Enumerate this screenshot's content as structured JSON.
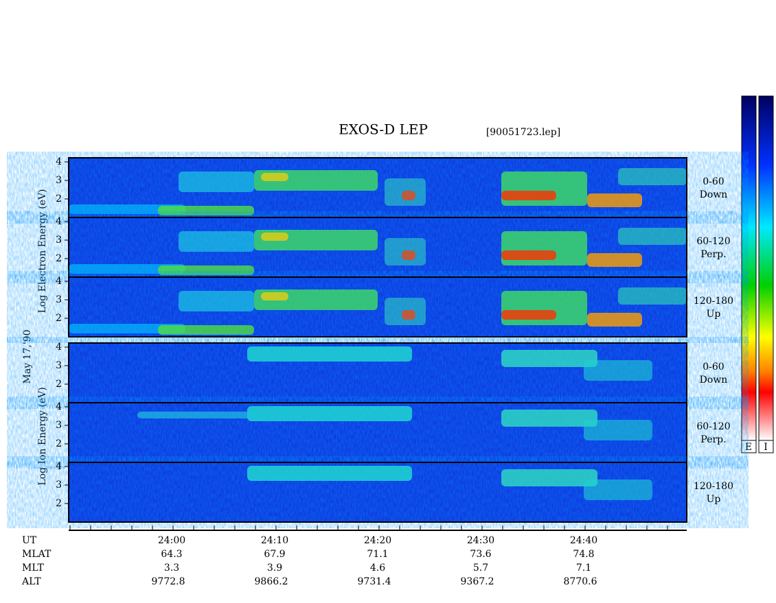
{
  "title": "EXOS-D LEP",
  "file": "[90051723.lep]",
  "date": "May 17,'90",
  "electron_axis": "Log Electron Energy (eV)",
  "ion_axis": "Log Ion Energy (eV)",
  "yticks": [
    2,
    3,
    4
  ],
  "panels": [
    {
      "angle": "0-60",
      "dir": "Down"
    },
    {
      "angle": "60-120",
      "dir": "Perp."
    },
    {
      "angle": "120-180",
      "dir": "Up"
    },
    {
      "angle": "0-60",
      "dir": "Down"
    },
    {
      "angle": "60-120",
      "dir": "Perp."
    },
    {
      "angle": "120-180",
      "dir": "Up"
    }
  ],
  "colorbar_labels": [
    "E",
    "I"
  ],
  "orbit": {
    "row_names": [
      "UT",
      "MLAT",
      "MLT",
      "ALT"
    ],
    "columns": [
      [
        "24:00",
        "64.3",
        "3.3",
        "9772.8"
      ],
      [
        "24:10",
        "67.9",
        "3.9",
        "9866.2"
      ],
      [
        "24:20",
        "71.1",
        "4.6",
        "9731.4"
      ],
      [
        "24:30",
        "73.6",
        "5.7",
        "9367.2"
      ],
      [
        "24:40",
        "74.8",
        "7.1",
        "8770.6"
      ]
    ]
  }
}
